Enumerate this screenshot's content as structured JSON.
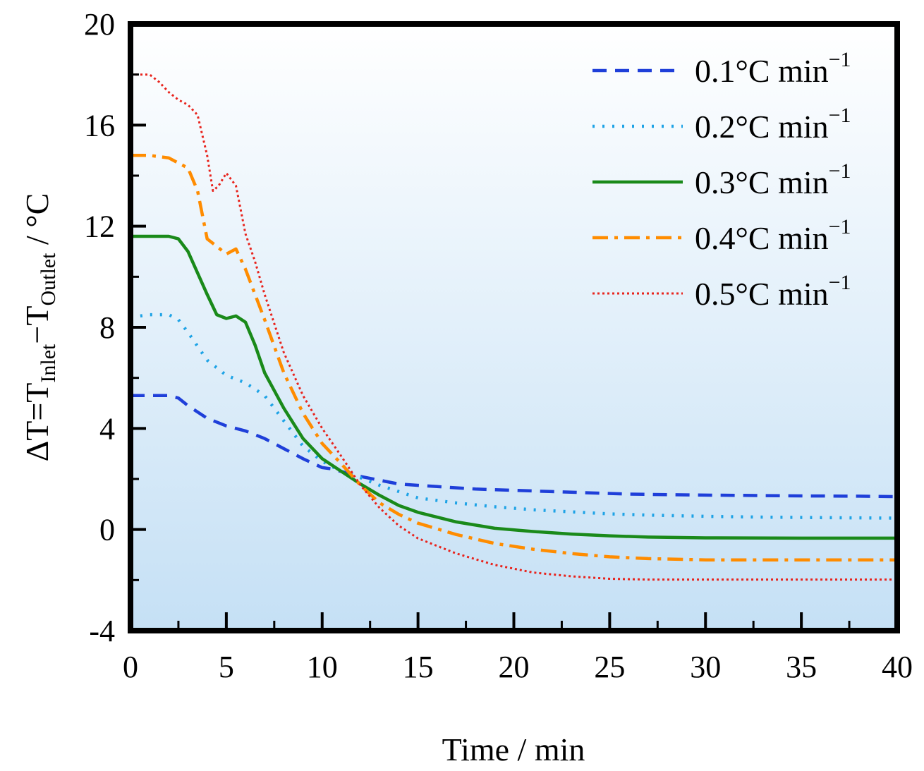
{
  "chart_data": {
    "type": "line",
    "title": "",
    "xlabel": "Time / min",
    "ylabel": {
      "prefix": "ΔT=T",
      "sub1": "Inlet",
      "mid": "−T",
      "sub2": "Outlet",
      "suffix": " / °C"
    },
    "xlim": [
      0,
      40
    ],
    "ylim": [
      -4,
      20
    ],
    "xticks": [
      0,
      5,
      10,
      15,
      20,
      25,
      30,
      35,
      40
    ],
    "xtick_labels": [
      "0",
      "5",
      "10",
      "15",
      "20",
      "25",
      "30",
      "35",
      "40"
    ],
    "yticks": [
      -4,
      0,
      4,
      8,
      12,
      16,
      20
    ],
    "ytick_labels": [
      "-4",
      "0",
      "4",
      "8",
      "12",
      "16",
      "20"
    ],
    "grid": false,
    "legend_position": "top-right",
    "series": [
      {
        "name": "0.1°C min",
        "name_main": "0.1°C min",
        "name_sup": "−1",
        "color": "#1f3fd9",
        "style": "dashed",
        "x": [
          0,
          1,
          2,
          2.5,
          3,
          4,
          5,
          6,
          7,
          8,
          9,
          10,
          10.5,
          11,
          12,
          13,
          14,
          16,
          18,
          20,
          22,
          24,
          26,
          28,
          30,
          32,
          35,
          38,
          40
        ],
        "y": [
          5.3,
          5.3,
          5.3,
          5.2,
          4.9,
          4.4,
          4.1,
          3.9,
          3.6,
          3.2,
          2.8,
          2.45,
          2.4,
          2.3,
          2.1,
          1.95,
          1.8,
          1.7,
          1.6,
          1.55,
          1.5,
          1.45,
          1.4,
          1.38,
          1.36,
          1.35,
          1.33,
          1.32,
          1.3
        ]
      },
      {
        "name": "0.2°C min",
        "name_main": "0.2°C min",
        "name_sup": "−1",
        "color": "#1ea3e6",
        "style": "dotted",
        "x": [
          0,
          1,
          2,
          2.5,
          3,
          4,
          5,
          6,
          7,
          8,
          9,
          10,
          11,
          12,
          13,
          14,
          15,
          17,
          19,
          21,
          23,
          25,
          27,
          30,
          33,
          36,
          40
        ],
        "y": [
          8.4,
          8.5,
          8.5,
          8.3,
          7.8,
          6.7,
          6.1,
          5.8,
          5.3,
          4.3,
          3.3,
          2.7,
          2.3,
          2.05,
          1.75,
          1.5,
          1.25,
          1.05,
          0.9,
          0.78,
          0.7,
          0.62,
          0.57,
          0.52,
          0.49,
          0.47,
          0.45
        ]
      },
      {
        "name": "0.3°C min",
        "name_main": "0.3°C min",
        "name_sup": "−1",
        "color": "#1a8a1a",
        "style": "solid",
        "x": [
          0,
          1,
          2,
          2.5,
          3,
          4,
          4.5,
          5,
          5.5,
          6,
          6.5,
          7,
          8,
          9,
          10,
          11,
          12,
          13,
          14,
          15,
          17,
          19,
          21,
          23,
          25,
          27,
          30,
          35,
          40
        ],
        "y": [
          11.6,
          11.6,
          11.6,
          11.5,
          11.0,
          9.3,
          8.5,
          8.35,
          8.45,
          8.2,
          7.3,
          6.2,
          4.8,
          3.6,
          2.8,
          2.3,
          1.8,
          1.35,
          0.95,
          0.68,
          0.3,
          0.05,
          -0.08,
          -0.18,
          -0.25,
          -0.3,
          -0.33,
          -0.34,
          -0.34
        ]
      },
      {
        "name": "0.4°C min",
        "name_main": "0.4°C min",
        "name_sup": "−1",
        "color": "#ff8c00",
        "style": "dashdot",
        "x": [
          0,
          1,
          2,
          3,
          3.5,
          4,
          4.5,
          5,
          5.5,
          6,
          7,
          8,
          9,
          10,
          11,
          12,
          13,
          14,
          15,
          17,
          19,
          21,
          23,
          25,
          27,
          30,
          35,
          40
        ],
        "y": [
          14.8,
          14.8,
          14.7,
          14.3,
          13.4,
          11.5,
          11.2,
          10.9,
          11.1,
          10.3,
          8.3,
          6.2,
          4.6,
          3.4,
          2.6,
          1.75,
          1.05,
          0.6,
          0.25,
          -0.2,
          -0.55,
          -0.78,
          -0.95,
          -1.08,
          -1.15,
          -1.2,
          -1.2,
          -1.2
        ]
      },
      {
        "name": "0.5°C min",
        "name_main": "0.5°C min",
        "name_sup": "−1",
        "color": "#e8231c",
        "style": "dotted-fine",
        "x": [
          0,
          1,
          1.5,
          2,
          2.5,
          3,
          3.5,
          4,
          4.3,
          4.6,
          5,
          5.5,
          6,
          6.5,
          7,
          8,
          9,
          10,
          11,
          12,
          13,
          14,
          15,
          17,
          19,
          21,
          23,
          25,
          27,
          30,
          35,
          40
        ],
        "y": [
          18.0,
          18.0,
          17.7,
          17.3,
          17.0,
          16.8,
          16.4,
          14.8,
          13.4,
          13.6,
          14.1,
          13.6,
          11.7,
          10.6,
          9.3,
          7.0,
          5.3,
          4.0,
          2.9,
          1.75,
          0.85,
          0.15,
          -0.35,
          -0.95,
          -1.4,
          -1.7,
          -1.85,
          -1.95,
          -1.98,
          -1.98,
          -1.98,
          -1.98
        ]
      }
    ]
  }
}
